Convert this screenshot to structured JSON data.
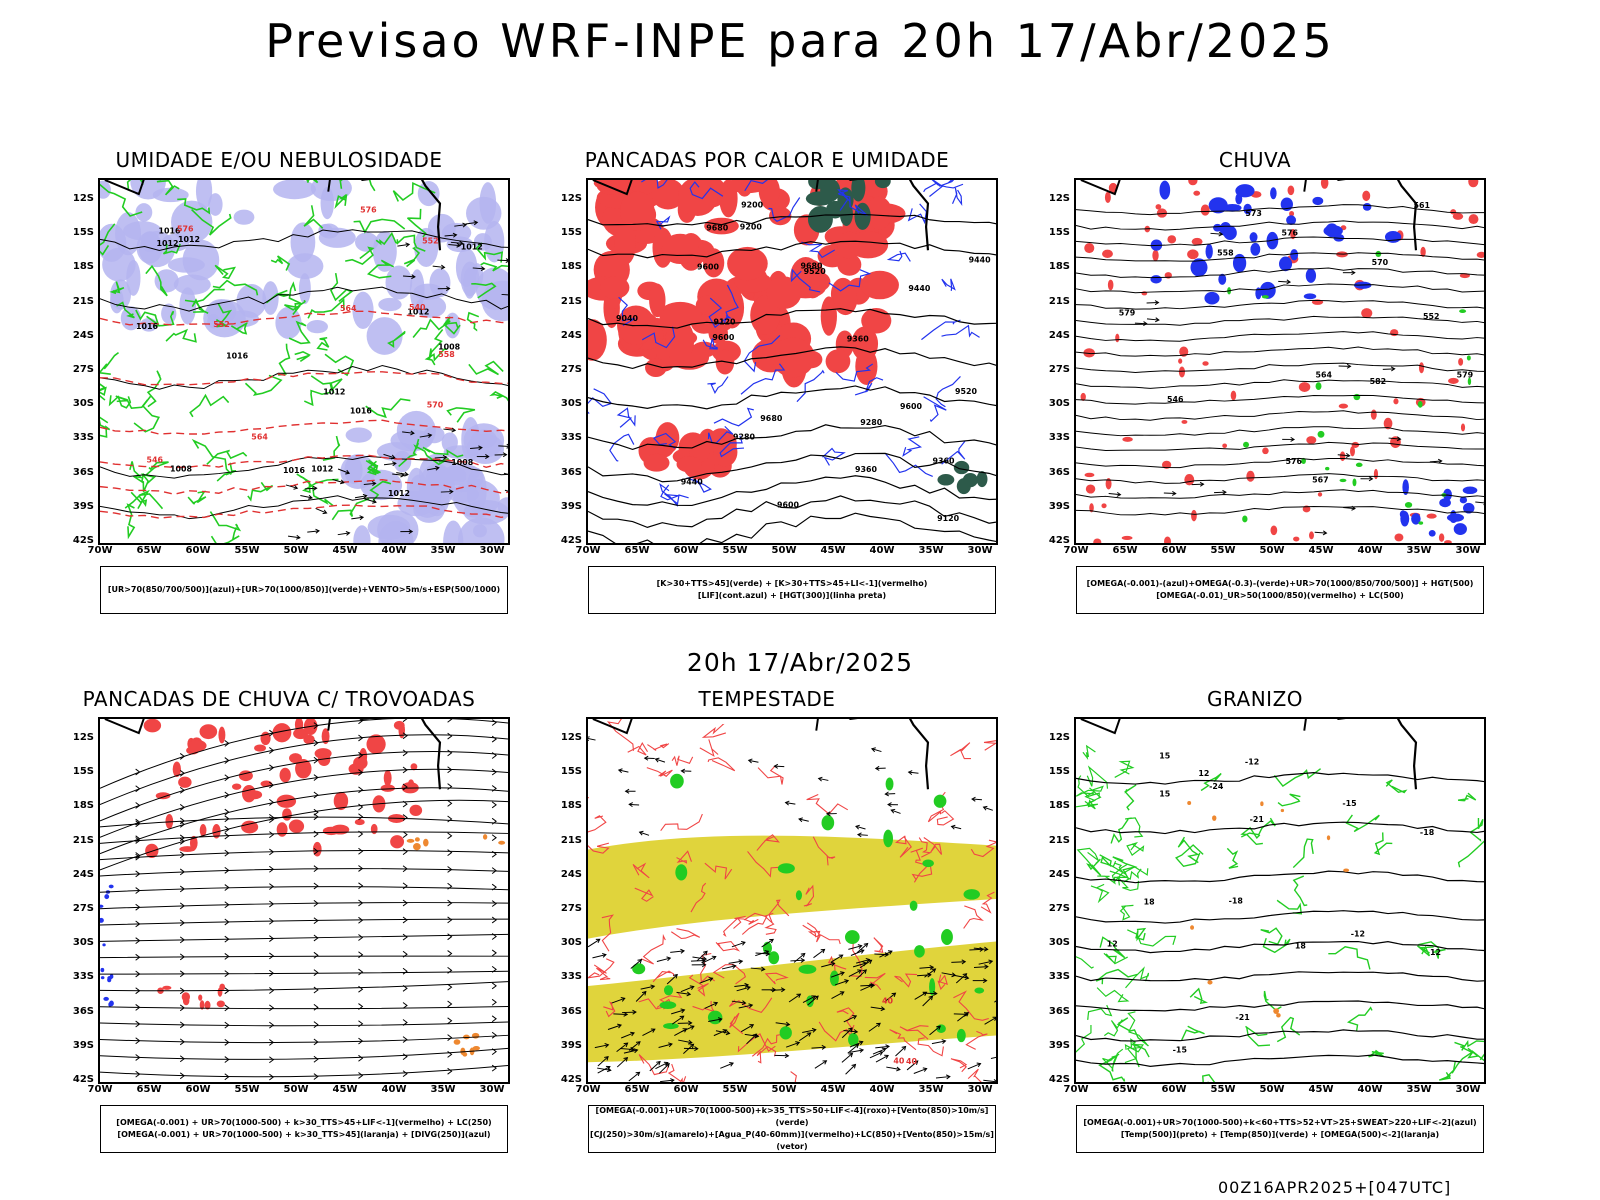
{
  "main_title": "Previsao WRF-INPE  para 20h 17/Abr/2025",
  "mid_title": "20h 17/Abr/2025",
  "footer": "00Z16APR2025+[047UTC]",
  "axes": {
    "lat_labels": [
      "12S",
      "15S",
      "18S",
      "21S",
      "24S",
      "27S",
      "30S",
      "33S",
      "36S",
      "39S",
      "42S"
    ],
    "lon_labels": [
      "70W",
      "65W",
      "60W",
      "55W",
      "50W",
      "45W",
      "40W",
      "35W",
      "30W"
    ]
  },
  "colors": {
    "red": "#f04545",
    "blue": "#2233ee",
    "green": "#22cc22",
    "lavender": "#b4b4f0",
    "yellow": "#e0d43c",
    "orange": "#ee8830",
    "darkgreen": "#2d5a4a"
  },
  "panels": [
    {
      "title": "UMIDADE E/OU NEBULOSIDADE",
      "legend": [
        "[UR>70(850/700/500)](azul)+[UR>70(1000/850)](verde)+VENTO>5m/s+ESP(500/1000)"
      ],
      "labels": [
        "1012",
        "1012",
        "1012",
        "1016",
        "1016",
        "1016",
        "1016",
        "1008",
        "1008",
        "1008",
        "1012",
        "1012",
        "1012",
        "1012",
        "1016",
        "576",
        "576",
        "564",
        "558",
        "552",
        "552",
        "546",
        "540",
        "570",
        "564"
      ]
    },
    {
      "title": "PANCADAS POR CALOR E UMIDADE",
      "legend": [
        "[K>30+TTS>45](verde) + [K>30+TTS>45+LI<-1](vermelho)",
        "[LIF](cont.azul) + [HGT(300)](linha preta)"
      ],
      "labels": [
        "9680",
        "9680",
        "9680",
        "9600",
        "9600",
        "9600",
        "9600",
        "9520",
        "9520",
        "9440",
        "9440",
        "9440",
        "9360",
        "9360",
        "9360",
        "9280",
        "9280",
        "9200",
        "9200",
        "9120",
        "9120",
        "9040"
      ]
    },
    {
      "title": "CHUVA",
      "legend": [
        "[OMEGA(-0.001)-(azul)+OMEGA(-0.3)-(verde)+UR>70(1000/850/700/500)] + HGT(500)",
        "[OMEGA(-0.01)_UR>50(1000/850)(vermelho) + LC(500)"
      ],
      "labels": [
        "582",
        "579",
        "576",
        "576",
        "573",
        "570",
        "567",
        "564",
        "561",
        "558",
        "552",
        "546",
        "579"
      ]
    },
    {
      "title": "PANCADAS DE CHUVA C/ TROVOADAS",
      "legend": [
        "[OMEGA(-0.001) + UR>70(1000-500) + k>30_TTS>45+LIF<-1](vermelho) + LC(250)",
        "[OMEGA(-0.001) + UR>70(1000-500) + k>30_TTS>45](laranja) + [DIVG(250)](azul)"
      ],
      "labels": []
    },
    {
      "title": "TEMPESTADE",
      "legend": [
        "[OMEGA(-0.001)+UR>70(1000-500)+k>35_TTS>50+LIF<-4](roxo)+[Vento(850)>10m/s](verde)",
        "[CJ(250)>30m/s](amarelo)+[Agua_P(40-60mm)](vermelho)+LC(850)+[Vento(850)>15m/s](vetor)"
      ],
      "labels": [
        "40",
        "40",
        "40"
      ]
    },
    {
      "title": "GRANIZO",
      "legend": [
        "[OMEGA(-0.001)+UR>70(1000-500)+k<60+TTS>52+VT>25+SWEAT>220+LIF<-2](azul)",
        "[Temp(500)](preto) + [Temp(850)](verde) + [OMEGA(500)<-2](laranja)"
      ],
      "labels": [
        "-12",
        "-12",
        "-15",
        "-15",
        "-18",
        "-18",
        "-21",
        "-21",
        "-24",
        "18",
        "12",
        "12",
        "12",
        "15",
        "18",
        "15"
      ]
    }
  ]
}
